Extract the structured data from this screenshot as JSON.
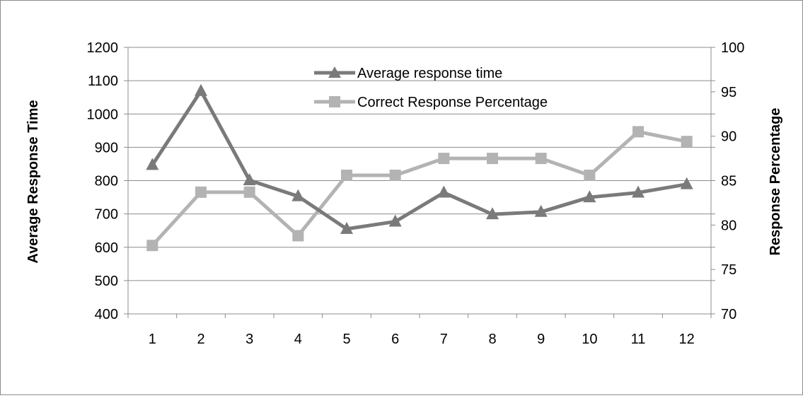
{
  "chart_data": {
    "type": "line",
    "categories": [
      "1",
      "2",
      "3",
      "4",
      "5",
      "6",
      "7",
      "8",
      "9",
      "10",
      "11",
      "12"
    ],
    "series": [
      {
        "name": "Average response time",
        "axis": "left",
        "marker": "triangle",
        "color": "#7a7a7a",
        "values": [
          847,
          1069,
          801,
          753,
          655,
          677,
          764,
          699,
          706,
          750,
          764,
          789
        ]
      },
      {
        "name": "Correct Response Percentage",
        "axis": "right",
        "marker": "square",
        "color": "#b3b3b3",
        "values": [
          77.7,
          83.7,
          83.7,
          78.8,
          85.6,
          85.6,
          87.5,
          87.5,
          87.5,
          85.6,
          90.5,
          89.4
        ]
      }
    ],
    "ylabel": "Average Response Time",
    "y2label": "Response Percentage",
    "ylim": [
      400,
      1200
    ],
    "yticks": [
      "400",
      "500",
      "600",
      "700",
      "800",
      "900",
      "1000",
      "1100",
      "1200"
    ],
    "y2lim": [
      70,
      100
    ],
    "y2ticks": [
      "70",
      "75",
      "80",
      "85",
      "90",
      "95",
      "100"
    ],
    "grid": "horizontal",
    "legend": "top-center"
  }
}
